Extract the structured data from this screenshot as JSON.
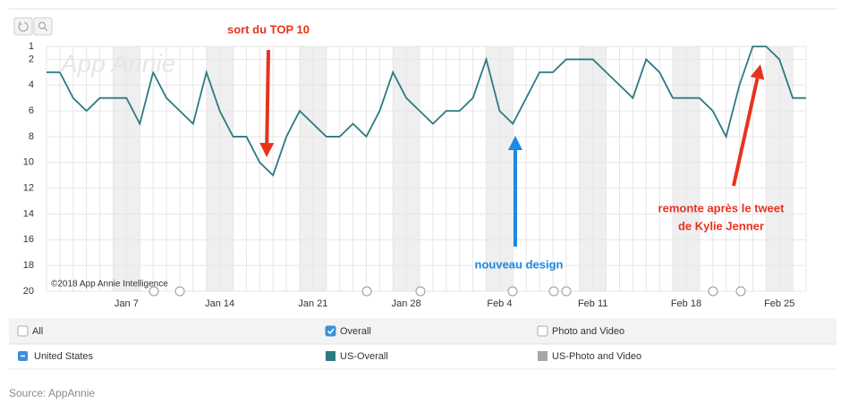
{
  "chart_data": {
    "type": "line",
    "watermark": "App Annie",
    "copyright": "©2018 App Annie Intelligence",
    "annotations": [
      {
        "text": "sort du TOP 10",
        "color": "#e8321e"
      },
      {
        "text": "nouveau design",
        "color": "#1e88e5"
      },
      {
        "text": "remonte après le tweet",
        "color": "#e8321e"
      },
      {
        "text": "de Kylie Jenner",
        "color": "#e8321e"
      }
    ],
    "categories": [
      null,
      null,
      null,
      null,
      null,
      null,
      "Jan 7",
      null,
      null,
      null,
      null,
      null,
      null,
      "Jan 14",
      null,
      null,
      null,
      null,
      null,
      null,
      "Jan 21",
      null,
      null,
      null,
      null,
      null,
      null,
      "Jan 28",
      null,
      null,
      null,
      null,
      null,
      null,
      "Feb 4",
      null,
      null,
      null,
      null,
      null,
      null,
      "Feb 11",
      null,
      null,
      null,
      null,
      null,
      null,
      "Feb 18",
      null,
      null,
      null,
      null,
      null,
      null,
      "Feb 25",
      null,
      null
    ],
    "series": [
      {
        "name": "US-Overall",
        "color": "#2d7a83",
        "values": [
          3,
          3,
          5,
          6,
          5,
          5,
          5,
          7,
          3,
          5,
          6,
          7,
          3,
          6,
          8,
          8,
          10,
          11,
          8,
          6,
          7,
          8,
          8,
          7,
          8,
          6,
          3,
          5,
          6,
          7,
          6,
          6,
          5,
          2,
          6,
          7,
          5,
          3,
          3,
          2,
          2,
          2,
          3,
          4,
          5,
          2,
          3,
          5,
          5,
          5,
          6,
          8,
          4,
          1,
          1,
          2,
          5,
          5
        ]
      }
    ],
    "ylim": [
      20,
      1
    ],
    "yticks": [
      1,
      2,
      4,
      6,
      8,
      10,
      12,
      14,
      16,
      18,
      20
    ],
    "grid": true
  },
  "legend": {
    "checkboxes": [
      {
        "label": "All",
        "checked": false
      },
      {
        "label": "Overall",
        "checked": true
      },
      {
        "label": "Photo and Video",
        "checked": false
      }
    ],
    "country": "United States",
    "other_series": {
      "name": "US-Photo and Video",
      "color": "#a6a6a6"
    }
  },
  "source": "Source: AppAnnie"
}
